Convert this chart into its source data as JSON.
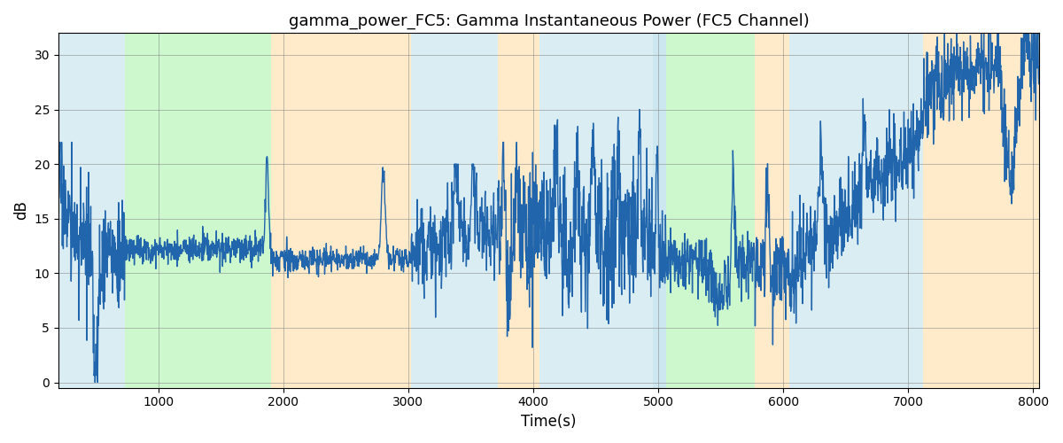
{
  "title": "gamma_power_FC5: Gamma Instantaneous Power (FC5 Channel)",
  "xlabel": "Time(s)",
  "ylabel": "dB",
  "xlim": [
    200,
    8050
  ],
  "ylim": [
    -0.5,
    32
  ],
  "yticks": [
    0,
    5,
    10,
    15,
    20,
    25,
    30
  ],
  "xticks": [
    1000,
    2000,
    3000,
    4000,
    5000,
    6000,
    7000,
    8000
  ],
  "bg_regions": [
    {
      "xmin": 200,
      "xmax": 730,
      "color": "#ADD8E6",
      "alpha": 0.45
    },
    {
      "xmin": 730,
      "xmax": 1900,
      "color": "#90EE90",
      "alpha": 0.45
    },
    {
      "xmin": 1900,
      "xmax": 3020,
      "color": "#FFDAA0",
      "alpha": 0.55
    },
    {
      "xmin": 3020,
      "xmax": 3720,
      "color": "#ADD8E6",
      "alpha": 0.45
    },
    {
      "xmin": 3720,
      "xmax": 4050,
      "color": "#FFDAA0",
      "alpha": 0.55
    },
    {
      "xmin": 4050,
      "xmax": 4960,
      "color": "#ADD8E6",
      "alpha": 0.45
    },
    {
      "xmin": 4960,
      "xmax": 5060,
      "color": "#ADD8E6",
      "alpha": 0.6
    },
    {
      "xmin": 5060,
      "xmax": 5770,
      "color": "#90EE90",
      "alpha": 0.45
    },
    {
      "xmin": 5770,
      "xmax": 6050,
      "color": "#FFDAA0",
      "alpha": 0.55
    },
    {
      "xmin": 6050,
      "xmax": 7120,
      "color": "#ADD8E6",
      "alpha": 0.45
    },
    {
      "xmin": 7120,
      "xmax": 8200,
      "color": "#FFDAA0",
      "alpha": 0.55
    }
  ],
  "line_color": "#2166AC",
  "line_width": 1.0,
  "figsize": [
    12,
    5
  ],
  "dpi": 100
}
